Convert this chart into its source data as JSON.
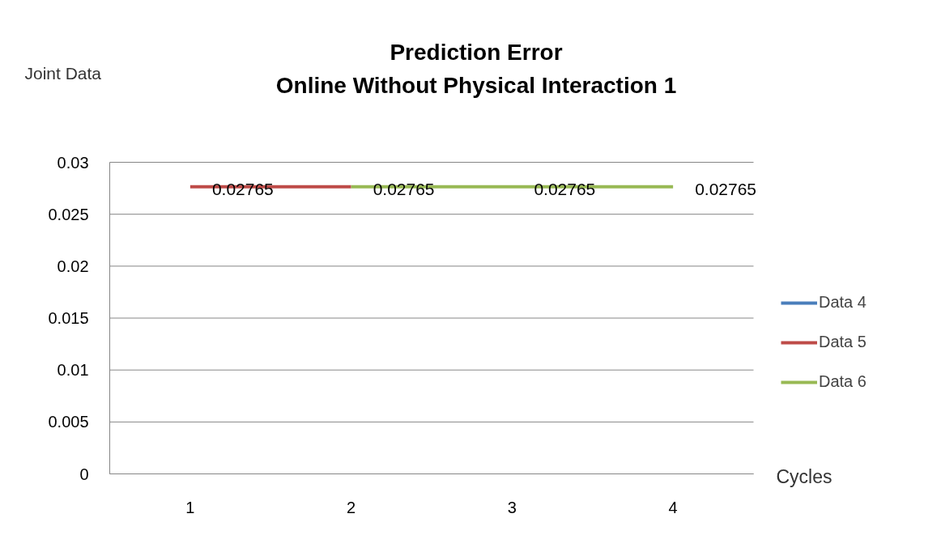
{
  "chart_data": {
    "type": "line",
    "title": "Prediction Error\nOnline Without Physical Interaction 1",
    "xlabel": "Cycles",
    "ylabel": "Joint Data",
    "categories": [
      "1",
      "2",
      "3",
      "4"
    ],
    "series": [
      {
        "name": "Data 4",
        "color": "#4a7ebb",
        "values": [
          null,
          null,
          null,
          null
        ]
      },
      {
        "name": "Data 5",
        "color": "#be4b48",
        "values": [
          0.02765,
          0.02765,
          null,
          null
        ],
        "value_labels": [
          "0.02765",
          null,
          null,
          null
        ]
      },
      {
        "name": "Data 6",
        "color": "#98b954",
        "values": [
          null,
          0.02765,
          0.02765,
          0.02765
        ],
        "value_labels": [
          null,
          "0.02765",
          "0.02765",
          "0.02765"
        ]
      }
    ],
    "ylim": [
      0,
      0.03
    ],
    "yticks": [
      0,
      0.005,
      0.01,
      0.015,
      0.02,
      0.025,
      0.03
    ],
    "grid": "y",
    "legend": "right"
  }
}
